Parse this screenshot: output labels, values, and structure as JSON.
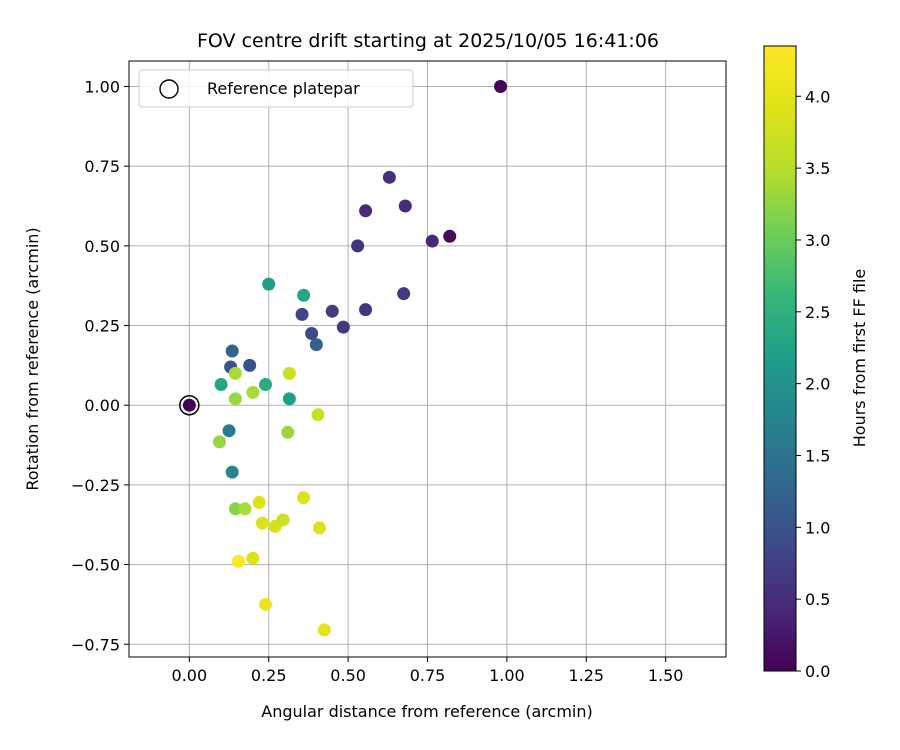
{
  "chart_data": {
    "type": "scatter",
    "title": "FOV centre drift starting at 2025/10/05 16:41:06",
    "xlabel": "Angular distance from reference (arcmin)",
    "ylabel": "Rotation from reference (arcmin)",
    "xlim": [
      -0.19,
      1.69
    ],
    "ylim": [
      -0.79,
      1.08
    ],
    "xticks": [
      0.0,
      0.25,
      0.5,
      0.75,
      1.0,
      1.25,
      1.5
    ],
    "xtick_labels": [
      "0.00",
      "0.25",
      "0.50",
      "0.75",
      "1.00",
      "1.25",
      "1.50"
    ],
    "yticks": [
      -0.75,
      -0.5,
      -0.25,
      0.0,
      0.25,
      0.5,
      0.75,
      1.0
    ],
    "ytick_labels": [
      "−0.75",
      "−0.50",
      "−0.25",
      "0.00",
      "0.25",
      "0.50",
      "0.75",
      "1.00"
    ],
    "grid": true,
    "legend": {
      "position": "top-left",
      "entries": [
        "Reference platepar"
      ]
    },
    "reference_point": {
      "x": 0.0,
      "y": 0.0
    },
    "colorbar": {
      "label": "Hours from first FF file",
      "range": [
        0.0,
        4.35
      ],
      "ticks": [
        0.0,
        0.5,
        1.0,
        1.5,
        2.0,
        2.5,
        3.0,
        3.5,
        4.0
      ],
      "tick_labels": [
        "0.0",
        "0.5",
        "1.0",
        "1.5",
        "2.0",
        "2.5",
        "3.0",
        "3.5",
        "4.0"
      ],
      "colormap": "viridis"
    },
    "points": [
      {
        "x": 0.0,
        "y": 0.0,
        "c": 0.0
      },
      {
        "x": 0.98,
        "y": 1.0,
        "c": 0.05
      },
      {
        "x": 0.82,
        "y": 0.53,
        "c": 0.1
      },
      {
        "x": 0.63,
        "y": 0.715,
        "c": 0.55
      },
      {
        "x": 0.555,
        "y": 0.61,
        "c": 0.45
      },
      {
        "x": 0.68,
        "y": 0.625,
        "c": 0.5
      },
      {
        "x": 0.765,
        "y": 0.515,
        "c": 0.45
      },
      {
        "x": 0.53,
        "y": 0.5,
        "c": 0.6
      },
      {
        "x": 0.675,
        "y": 0.35,
        "c": 0.65
      },
      {
        "x": 0.555,
        "y": 0.3,
        "c": 0.6
      },
      {
        "x": 0.45,
        "y": 0.295,
        "c": 0.7
      },
      {
        "x": 0.485,
        "y": 0.245,
        "c": 0.65
      },
      {
        "x": 0.355,
        "y": 0.285,
        "c": 0.8
      },
      {
        "x": 0.385,
        "y": 0.225,
        "c": 0.85
      },
      {
        "x": 0.4,
        "y": 0.19,
        "c": 1.2
      },
      {
        "x": 0.36,
        "y": 0.345,
        "c": 2.3
      },
      {
        "x": 0.25,
        "y": 0.38,
        "c": 2.2
      },
      {
        "x": 0.135,
        "y": 0.17,
        "c": 1.2
      },
      {
        "x": 0.13,
        "y": 0.12,
        "c": 1.0
      },
      {
        "x": 0.19,
        "y": 0.125,
        "c": 1.0
      },
      {
        "x": 0.1,
        "y": 0.065,
        "c": 2.3
      },
      {
        "x": 0.24,
        "y": 0.065,
        "c": 2.4
      },
      {
        "x": 0.315,
        "y": 0.02,
        "c": 2.2
      },
      {
        "x": 0.145,
        "y": 0.1,
        "c": 3.4
      },
      {
        "x": 0.2,
        "y": 0.04,
        "c": 3.4
      },
      {
        "x": 0.145,
        "y": 0.02,
        "c": 3.3
      },
      {
        "x": 0.315,
        "y": 0.1,
        "c": 3.7
      },
      {
        "x": 0.405,
        "y": -0.03,
        "c": 3.7
      },
      {
        "x": 0.31,
        "y": -0.085,
        "c": 3.3
      },
      {
        "x": 0.095,
        "y": -0.115,
        "c": 3.3
      },
      {
        "x": 0.125,
        "y": -0.08,
        "c": 1.6
      },
      {
        "x": 0.135,
        "y": -0.21,
        "c": 1.8
      },
      {
        "x": 0.145,
        "y": -0.325,
        "c": 3.2
      },
      {
        "x": 0.175,
        "y": -0.325,
        "c": 3.4
      },
      {
        "x": 0.22,
        "y": -0.305,
        "c": 3.9
      },
      {
        "x": 0.23,
        "y": -0.37,
        "c": 3.9
      },
      {
        "x": 0.27,
        "y": -0.38,
        "c": 3.8
      },
      {
        "x": 0.295,
        "y": -0.36,
        "c": 3.7
      },
      {
        "x": 0.36,
        "y": -0.29,
        "c": 3.9
      },
      {
        "x": 0.41,
        "y": -0.385,
        "c": 3.9
      },
      {
        "x": 0.2,
        "y": -0.48,
        "c": 3.9
      },
      {
        "x": 0.155,
        "y": -0.49,
        "c": 4.35
      },
      {
        "x": 0.24,
        "y": -0.625,
        "c": 4.1
      },
      {
        "x": 0.425,
        "y": -0.705,
        "c": 4.0
      }
    ]
  }
}
